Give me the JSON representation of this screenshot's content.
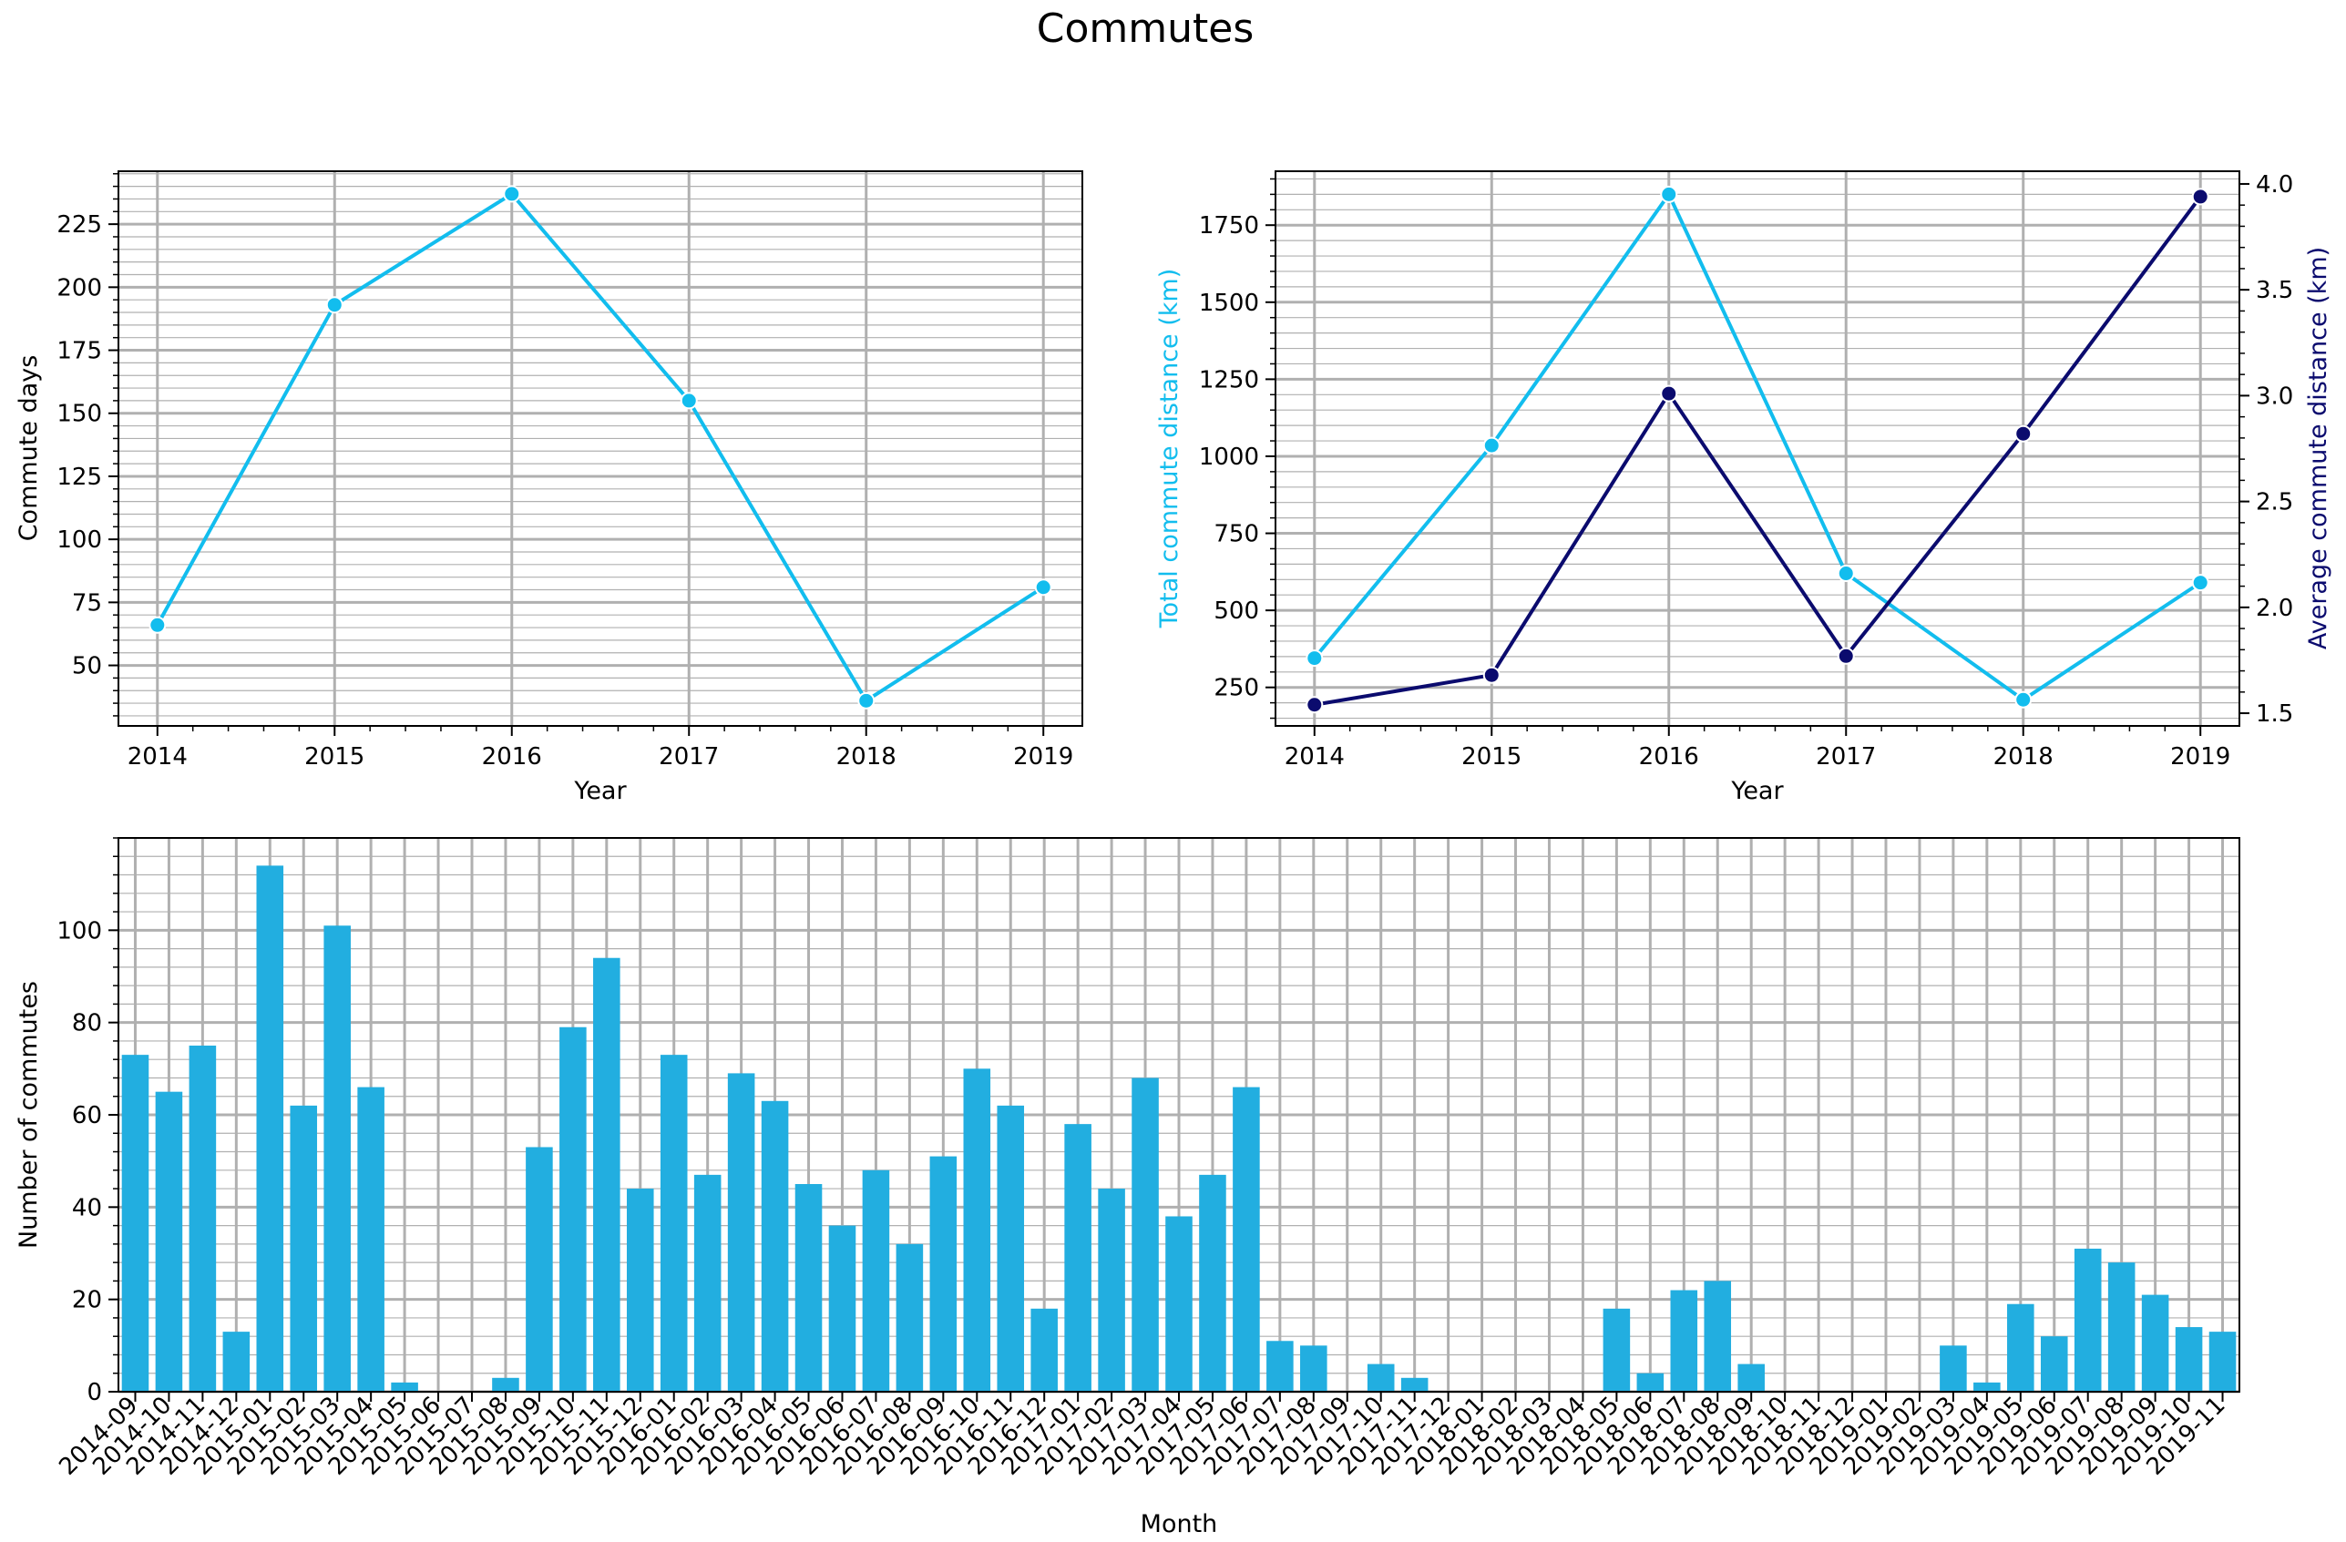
{
  "figure": {
    "title": "Commutes"
  },
  "colors": {
    "accent": "#12bdee",
    "navy": "#0b0b6e",
    "bar": "#22aee0",
    "grid": "#b0b0b0"
  },
  "chart_data": [
    {
      "type": "line",
      "x": [
        2014,
        2015,
        2016,
        2017,
        2018,
        2019
      ],
      "series": [
        {
          "values": [
            66,
            193,
            237,
            155,
            36,
            81
          ],
          "color": "#12bdee"
        }
      ],
      "title": "",
      "xlabel": "Year",
      "ylabel": "Commute days",
      "xlim": [
        2013.78,
        2019.22
      ],
      "ylim": [
        26,
        246
      ],
      "yticks": [
        50,
        75,
        100,
        125,
        150,
        175,
        200,
        225
      ],
      "grid": true
    },
    {
      "type": "line",
      "x": [
        2014,
        2015,
        2016,
        2017,
        2018,
        2019
      ],
      "series": [
        {
          "values": [
            345,
            1035,
            1850,
            620,
            210,
            590
          ],
          "color": "#12bdee",
          "axis": "left"
        },
        {
          "values": [
            1.54,
            1.68,
            3.01,
            1.77,
            2.82,
            3.94
          ],
          "color": "#0b0b6e",
          "axis": "right"
        }
      ],
      "title": "",
      "xlabel": "Year",
      "ylabel": "Total commute distance (km)",
      "ylabel_right": "Average commute distance (km)",
      "xlim": [
        2013.78,
        2019.22
      ],
      "ylim": [
        125,
        1925
      ],
      "ylim_right": [
        1.44,
        4.06
      ],
      "yticks": [
        250,
        500,
        750,
        1000,
        1250,
        1500,
        1750
      ],
      "yticks_right": [
        "1.5",
        "2.0",
        "2.5",
        "3.0",
        "3.5",
        "4.0"
      ],
      "grid": true
    },
    {
      "type": "bar",
      "categories": [
        "2014-09",
        "2014-10",
        "2014-11",
        "2014-12",
        "2015-01",
        "2015-02",
        "2015-03",
        "2015-04",
        "2015-05",
        "2015-06",
        "2015-07",
        "2015-08",
        "2015-09",
        "2015-10",
        "2015-11",
        "2015-12",
        "2016-01",
        "2016-02",
        "2016-03",
        "2016-04",
        "2016-05",
        "2016-06",
        "2016-07",
        "2016-08",
        "2016-09",
        "2016-10",
        "2016-11",
        "2016-12",
        "2017-01",
        "2017-02",
        "2017-03",
        "2017-04",
        "2017-05",
        "2017-06",
        "2017-07",
        "2017-08",
        "2017-09",
        "2017-10",
        "2017-11",
        "2017-12",
        "2018-01",
        "2018-02",
        "2018-03",
        "2018-04",
        "2018-05",
        "2018-06",
        "2018-07",
        "2018-08",
        "2018-09",
        "2018-10",
        "2018-11",
        "2018-12",
        "2019-01",
        "2019-02",
        "2019-03",
        "2019-04",
        "2019-05",
        "2019-06",
        "2019-07",
        "2019-08",
        "2019-09",
        "2019-10",
        "2019-11"
      ],
      "values": [
        73,
        65,
        75,
        13,
        114,
        62,
        101,
        66,
        2,
        0,
        0,
        3,
        53,
        79,
        94,
        44,
        73,
        47,
        69,
        63,
        45,
        36,
        48,
        32,
        51,
        70,
        62,
        18,
        58,
        44,
        68,
        38,
        47,
        66,
        11,
        10,
        0,
        6,
        3,
        0,
        0,
        0,
        0,
        0,
        18,
        4,
        22,
        24,
        6,
        0,
        0,
        0,
        0,
        0,
        10,
        2,
        19,
        12,
        31,
        28,
        21,
        14,
        13
      ],
      "title": "",
      "xlabel": "Month",
      "ylabel": "Number of commutes",
      "ylim": [
        0,
        120
      ],
      "yticks": [
        0,
        20,
        40,
        60,
        80,
        100
      ],
      "color": "#22aee0",
      "grid": true
    }
  ]
}
